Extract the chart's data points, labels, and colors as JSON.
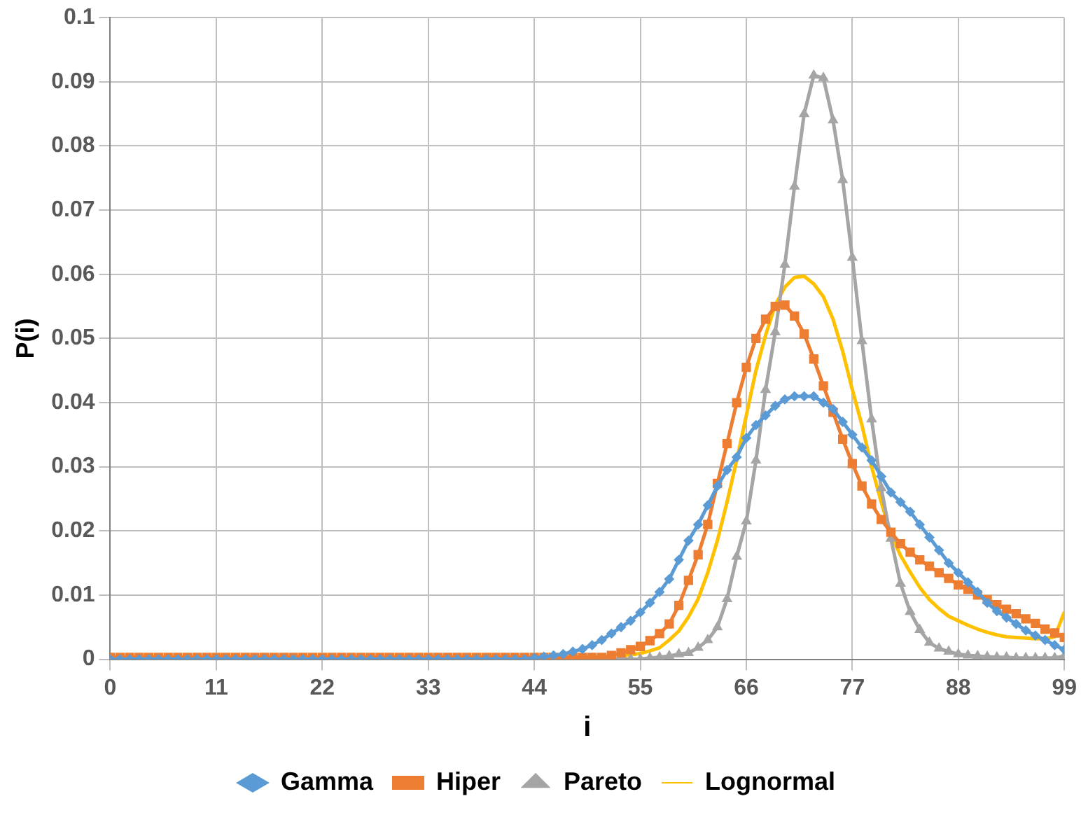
{
  "chart_data": {
    "type": "line",
    "xlabel": "i",
    "ylabel": "P(i)",
    "x": [
      0,
      1,
      2,
      3,
      4,
      5,
      6,
      7,
      8,
      9,
      10,
      11,
      12,
      13,
      14,
      15,
      16,
      17,
      18,
      19,
      20,
      21,
      22,
      23,
      24,
      25,
      26,
      27,
      28,
      29,
      30,
      31,
      32,
      33,
      34,
      35,
      36,
      37,
      38,
      39,
      40,
      41,
      42,
      43,
      44,
      45,
      46,
      47,
      48,
      49,
      50,
      51,
      52,
      53,
      54,
      55,
      56,
      57,
      58,
      59,
      60,
      61,
      62,
      63,
      64,
      65,
      66,
      67,
      68,
      69,
      70,
      71,
      72,
      73,
      74,
      75,
      76,
      77,
      78,
      79,
      80,
      81,
      82,
      83,
      84,
      85,
      86,
      87,
      88,
      89,
      90,
      91,
      92,
      93,
      94,
      95,
      96,
      97,
      98,
      99
    ],
    "xlim": [
      0,
      99
    ],
    "xticks": [
      0,
      11,
      22,
      33,
      44,
      55,
      66,
      77,
      88,
      99
    ],
    "ylim": [
      0,
      0.1
    ],
    "yticks": [
      0,
      0.01,
      0.02,
      0.03,
      0.04,
      0.05,
      0.06,
      0.07,
      0.08,
      0.09,
      0.1
    ],
    "grid": true,
    "legend": "bottom",
    "series": [
      {
        "name": "Gamma",
        "color": "#5b9bd5",
        "marker": "diamond",
        "values": [
          0,
          0,
          0,
          0,
          0,
          0,
          0,
          0,
          0,
          0,
          0,
          0,
          0,
          0,
          0,
          0,
          0,
          0,
          0,
          0,
          0,
          0,
          0,
          0,
          0,
          0,
          0,
          0,
          0,
          0,
          0,
          0,
          0,
          0,
          0,
          0,
          0,
          0,
          0,
          0,
          0,
          0,
          0,
          0,
          0.0002,
          0.0004,
          0.0006,
          0.0008,
          0.0012,
          0.0016,
          0.0022,
          0.003,
          0.004,
          0.005,
          0.006,
          0.0073,
          0.0088,
          0.0105,
          0.0125,
          0.0155,
          0.0185,
          0.021,
          0.024,
          0.027,
          0.0295,
          0.0315,
          0.0345,
          0.0365,
          0.038,
          0.0395,
          0.0405,
          0.041,
          0.041,
          0.041,
          0.04,
          0.039,
          0.037,
          0.035,
          0.033,
          0.031,
          0.0285,
          0.026,
          0.0245,
          0.023,
          0.021,
          0.019,
          0.017,
          0.015,
          0.0135,
          0.012,
          0.0105,
          0.0088,
          0.0075,
          0.0065,
          0.0055,
          0.0045,
          0.0037,
          0.003,
          0.0022,
          0.0015
        ]
      },
      {
        "name": "Hiper",
        "color": "#ed7d31",
        "marker": "square",
        "values": [
          0.0003,
          0.0003,
          0.0003,
          0.0003,
          0.0003,
          0.0003,
          0.0003,
          0.0003,
          0.0003,
          0.0003,
          0.0003,
          0.0003,
          0.0003,
          0.0003,
          0.0003,
          0.0003,
          0.0003,
          0.0003,
          0.0003,
          0.0003,
          0.0003,
          0.0003,
          0.0003,
          0.0003,
          0.0003,
          0.0003,
          0.0003,
          0.0003,
          0.0003,
          0.0003,
          0.0003,
          0.0003,
          0.0003,
          0.0003,
          0.0003,
          0.0003,
          0.0003,
          0.0003,
          0.0003,
          0.0003,
          0.0003,
          0.0003,
          0.0003,
          0.0003,
          0.0003,
          0.0003,
          0.0003,
          0.0003,
          0.0003,
          0.0003,
          0.0003,
          0.0003,
          0.0006,
          0.001,
          0.0015,
          0.002,
          0.0029,
          0.004,
          0.0055,
          0.0084,
          0.0123,
          0.0163,
          0.021,
          0.0274,
          0.0336,
          0.04,
          0.0455,
          0.05,
          0.053,
          0.055,
          0.0552,
          0.0535,
          0.0507,
          0.0468,
          0.0426,
          0.0385,
          0.0343,
          0.0305,
          0.027,
          0.0242,
          0.0218,
          0.0198,
          0.018,
          0.0167,
          0.0155,
          0.0145,
          0.0135,
          0.0126,
          0.0116,
          0.0109,
          0.01,
          0.0093,
          0.0085,
          0.0078,
          0.0071,
          0.0063,
          0.0056,
          0.0047,
          0.0041,
          0.0034
        ]
      },
      {
        "name": "Pareto",
        "color": "#a5a5a5",
        "marker": "triangle",
        "values": [
          0,
          0,
          0,
          0,
          0,
          0,
          0,
          0,
          0,
          0,
          0,
          0,
          0,
          0,
          0,
          0,
          0,
          0,
          0,
          0,
          0,
          0,
          0,
          0,
          0,
          0,
          0,
          0,
          0,
          0,
          0,
          0,
          0,
          0,
          0,
          0,
          0,
          0,
          0,
          0,
          0,
          0,
          0,
          0,
          0,
          0,
          0,
          0,
          0,
          0,
          0,
          0,
          0,
          0,
          0,
          0,
          0.0002,
          0.0003,
          0.0005,
          0.0008,
          0.001,
          0.0018,
          0.003,
          0.005,
          0.0094,
          0.016,
          0.0215,
          0.031,
          0.042,
          0.051,
          0.0615,
          0.0737,
          0.085,
          0.091,
          0.0906,
          0.084,
          0.0747,
          0.0626,
          0.0496,
          0.0374,
          0.0267,
          0.0188,
          0.0118,
          0.0074,
          0.0046,
          0.0026,
          0.0017,
          0.0012,
          0.0008,
          0.0006,
          0.0005,
          0.0004,
          0.0003,
          0.0003,
          0.0002,
          0.0002,
          0.0002,
          0.0002,
          0.0002,
          0.0005
        ]
      },
      {
        "name": "Lognormal",
        "color": "#ffc000",
        "marker": "none",
        "values": [
          null,
          null,
          null,
          null,
          null,
          null,
          null,
          null,
          null,
          null,
          null,
          null,
          null,
          null,
          null,
          null,
          null,
          null,
          null,
          null,
          null,
          null,
          null,
          null,
          null,
          null,
          null,
          null,
          null,
          null,
          null,
          null,
          null,
          null,
          null,
          null,
          null,
          null,
          null,
          null,
          null,
          null,
          null,
          null,
          null,
          null,
          null,
          null,
          null,
          null,
          null,
          null,
          null,
          0.0005,
          0.0007,
          0.0009,
          0.0013,
          0.0018,
          0.003,
          0.0044,
          0.0066,
          0.0094,
          0.0135,
          0.0185,
          0.0245,
          0.031,
          0.038,
          0.045,
          0.0505,
          0.0552,
          0.058,
          0.0595,
          0.0597,
          0.0585,
          0.0565,
          0.053,
          0.048,
          0.042,
          0.0365,
          0.03,
          0.0245,
          0.0195,
          0.0162,
          0.0136,
          0.0112,
          0.0093,
          0.0079,
          0.0067,
          0.006,
          0.0053,
          0.0047,
          0.0042,
          0.0038,
          0.0035,
          0.0034,
          0.0033,
          0.0032,
          0.0032,
          0.0035,
          0.0074
        ]
      }
    ]
  }
}
